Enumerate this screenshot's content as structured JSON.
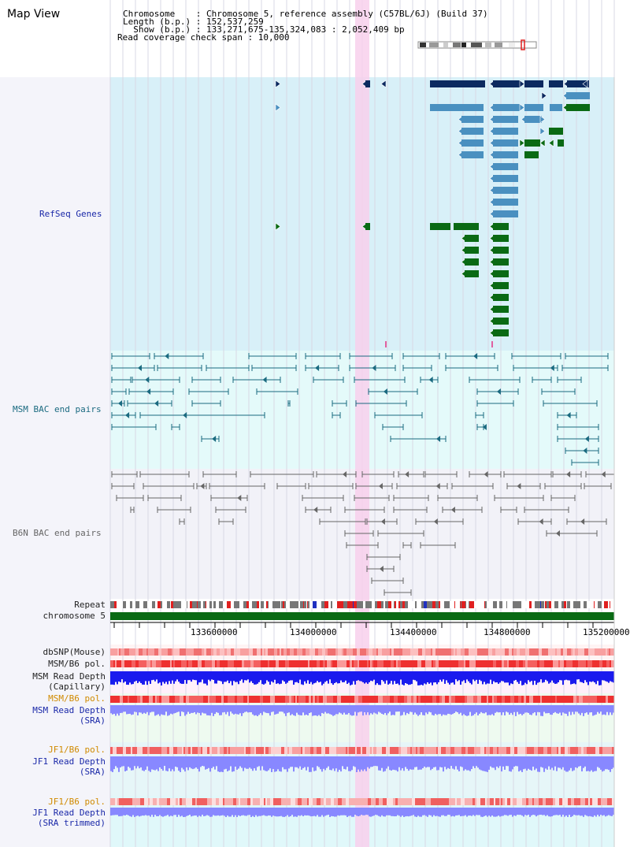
{
  "title": "Map View",
  "header": {
    "chromosome_line": "Chromosome    : Chromosome 5, reference assembly (C57BL/6J) (Build 37)",
    "length_line": "Length (b.p.) : 152,537,259",
    "show_line": "  Show (b.p.) : 133,271,675-135,324,083 : 2,052,409 bp",
    "coverage_line": "Read coverage check span : 10,000"
  },
  "tracks": {
    "refseq": "RefSeq Genes",
    "msm_bac": "MSM BAC end pairs",
    "b6n_bac": "B6N BAC end pairs",
    "repeat": "Repeat",
    "chromosome": "chromosome 5",
    "dbsnp": "dbSNP(Mouse)",
    "msm_b6_pol_1": "MSM/B6 pol.",
    "msm_read_depth_cap_1": "MSM Read Depth",
    "msm_read_depth_cap_2": "(Capillary)",
    "msm_b6_pol_2": "MSM/B6 pol.",
    "msm_read_depth_sra_1": "MSM Read Depth",
    "msm_read_depth_sra_2": "(SRA)",
    "jf1_b6_pol_1": "JF1/B6 pol.",
    "jf1_read_depth_sra_1": "JF1 Read Depth",
    "jf1_read_depth_sra_2": "(SRA)",
    "jf1_b6_pol_2": "JF1/B6 pol.",
    "jf1_read_depth_trim_1": "JF1 Read Depth",
    "jf1_read_depth_trim_2": "(SRA trimmed)"
  },
  "axis": {
    "ticks": [
      "133600000",
      "134000000",
      "134400000",
      "134800000",
      "135200000"
    ]
  },
  "colors": {
    "refseq_bg": "#d8f0f8",
    "msm_bg": "#e4fafa",
    "b6n_bg": "#f2f2f8",
    "highlight": "#f8d0ec",
    "gene_dark": "#0c2a60",
    "gene_mid": "#4a90c0",
    "gene_green": "#0a6a14",
    "bac_teal": "#1a6a80",
    "bac_grey": "#666666",
    "repeat_grey": "#777777",
    "repeat_red": "#e02020",
    "chromosome_green": "#0a6a14",
    "depth_blue": "#1a1aee",
    "depth_light": "#8888ff"
  }
}
